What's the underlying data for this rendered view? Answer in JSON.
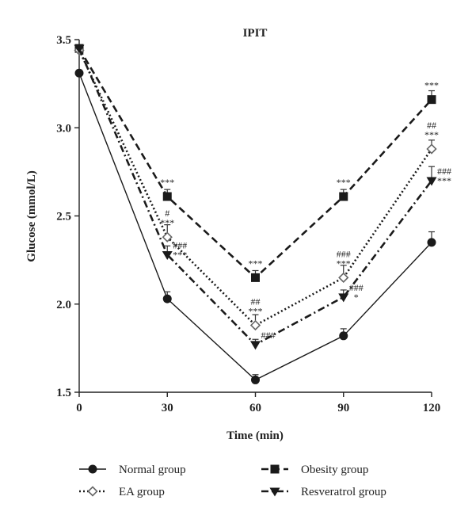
{
  "chart_data": {
    "type": "line",
    "title": "IPIT",
    "xlabel": "Time (min)",
    "ylabel": "Glucose (mmol/L)",
    "x": [
      0,
      30,
      60,
      90,
      120
    ],
    "xlim": [
      0,
      120
    ],
    "ylim": [
      1.5,
      3.5
    ],
    "xticks": [
      "0",
      "30",
      "60",
      "90",
      "120"
    ],
    "yticks": [
      "1.5",
      "2.0",
      "2.5",
      "3.0",
      "3.5"
    ],
    "grid": false,
    "legend": "bottom",
    "series": [
      {
        "name": "Normal group",
        "values": [
          3.31,
          2.03,
          1.57,
          1.82,
          2.35
        ],
        "errors": [
          0.04,
          0.04,
          0.03,
          0.04,
          0.06
        ],
        "marker": "circle",
        "dash": "solid",
        "color": "#1a1a1a"
      },
      {
        "name": "Obesity group",
        "values": [
          3.45,
          2.61,
          2.15,
          2.61,
          3.16
        ],
        "errors": [
          0.03,
          0.04,
          0.04,
          0.04,
          0.05
        ],
        "marker": "square",
        "dash": "dashed",
        "color": "#1a1a1a"
      },
      {
        "name": "EA group",
        "values": [
          3.44,
          2.38,
          1.88,
          2.15,
          2.88
        ],
        "errors": [
          0.03,
          0.07,
          0.06,
          0.07,
          0.05
        ],
        "marker": "diamond",
        "dash": "dotted",
        "color": "#1a1a1a"
      },
      {
        "name": "Resveratrol group",
        "values": [
          3.45,
          2.28,
          1.77,
          2.04,
          2.7
        ],
        "errors": [
          0.03,
          0.05,
          0.03,
          0.04,
          0.08
        ],
        "marker": "triangle-down",
        "dash": "dashdot",
        "color": "#1a1a1a"
      }
    ],
    "annotations": [
      {
        "x": 30,
        "lines": [
          "***"
        ],
        "anchor": 2.61
      },
      {
        "x": 30,
        "lines": [
          "#",
          "***"
        ],
        "anchor": 2.38
      },
      {
        "x": 30,
        "lines": [
          "###",
          "***"
        ],
        "anchor": 2.28,
        "side": "right"
      },
      {
        "x": 60,
        "lines": [
          "***"
        ],
        "anchor": 2.15
      },
      {
        "x": 60,
        "lines": [
          "##",
          "***"
        ],
        "anchor": 1.88
      },
      {
        "x": 60,
        "lines": [
          "###"
        ],
        "anchor": 1.77,
        "side": "right"
      },
      {
        "x": 90,
        "lines": [
          "***"
        ],
        "anchor": 2.61
      },
      {
        "x": 90,
        "lines": [
          "###",
          "***"
        ],
        "anchor": 2.15
      },
      {
        "x": 90,
        "lines": [
          "###",
          "*"
        ],
        "anchor": 2.04,
        "side": "right"
      },
      {
        "x": 120,
        "lines": [
          "***"
        ],
        "anchor": 3.16
      },
      {
        "x": 120,
        "lines": [
          "##",
          "***"
        ],
        "anchor": 2.88
      },
      {
        "x": 120,
        "lines": [
          "###",
          "***"
        ],
        "anchor": 2.7,
        "side": "right"
      }
    ]
  }
}
